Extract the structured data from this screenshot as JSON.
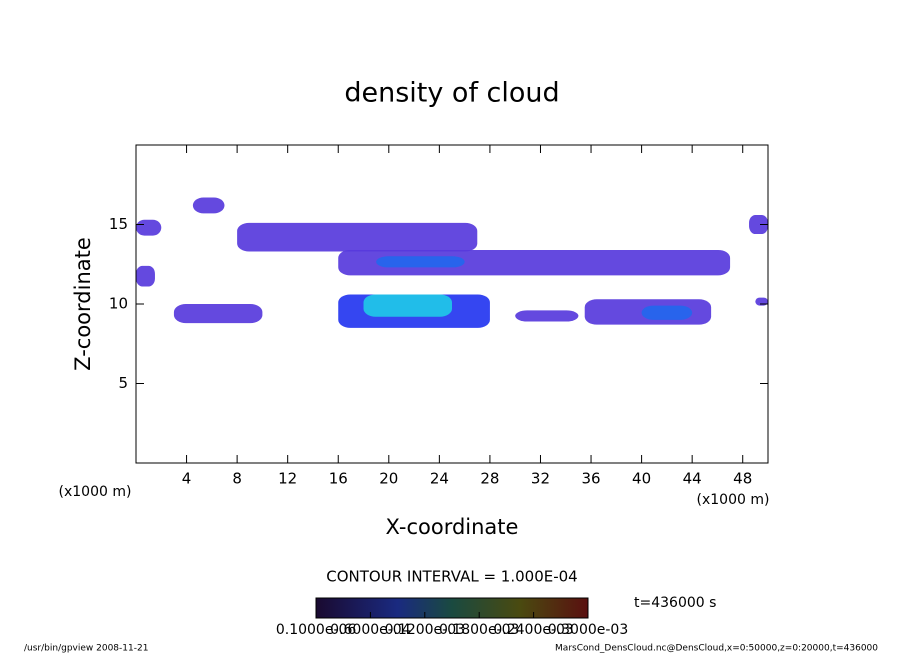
{
  "chart_data": {
    "type": "contour",
    "title": "density of cloud",
    "xlabel": "X-coordinate",
    "ylabel": "Z-coordinate",
    "x_unit_label": "(x1000 m)",
    "y_unit_label": "(x1000 m)",
    "xlim": [
      0,
      50
    ],
    "ylim": [
      0,
      20
    ],
    "xticks": [
      4,
      8,
      12,
      16,
      20,
      24,
      28,
      32,
      36,
      40,
      44,
      48
    ],
    "yticks": [
      5,
      10,
      15
    ],
    "contour_interval": "CONTOUR INTERVAL = 1.000E-04",
    "time_label": "t=436000 s",
    "footer_left": "/usr/bin/gpview   2008-11-21",
    "footer_right": "MarsCond_DensCloud.nc@DensCloud,x=0:50000,z=0:20000,t=436000",
    "colormap": [
      "#8a3cc8",
      "#2436f0",
      "#20c8e8",
      "#40d040",
      "#e8e030",
      "#e03020"
    ],
    "clim": [
      0,
      0.0003
    ],
    "colorbar_ticks": [
      {
        "value": 1e-07,
        "label": "0.1000e-06"
      },
      {
        "value": 6e-05,
        "label": "0.6000e-04"
      },
      {
        "value": 0.00012,
        "label": "0.1200e-03"
      },
      {
        "value": 0.00018,
        "label": "0.1800e-03"
      },
      {
        "value": 0.00024,
        "label": "0.2400e-03"
      },
      {
        "value": 0.0003,
        "label": "0.3000e-03"
      }
    ],
    "regions": [
      {
        "x0": 0,
        "x1": 2,
        "z0": 14.3,
        "z1": 15.3,
        "value": 3e-05
      },
      {
        "x0": 0,
        "x1": 1.5,
        "z0": 11.1,
        "z1": 12.4,
        "value": 3e-05
      },
      {
        "x0": 4.5,
        "x1": 7,
        "z0": 15.7,
        "z1": 16.7,
        "value": 3e-05
      },
      {
        "x0": 8,
        "x1": 27,
        "z0": 13.3,
        "z1": 15.1,
        "value": 3e-05
      },
      {
        "x0": 16,
        "x1": 47,
        "z0": 11.8,
        "z1": 13.4,
        "value": 3e-05
      },
      {
        "x0": 19,
        "x1": 26,
        "z0": 12.3,
        "z1": 13,
        "value": 8e-05
      },
      {
        "x0": 3,
        "x1": 10,
        "z0": 8.8,
        "z1": 10,
        "value": 3e-05
      },
      {
        "x0": 16,
        "x1": 28,
        "z0": 8.5,
        "z1": 10.6,
        "value": 6e-05
      },
      {
        "x0": 18,
        "x1": 25,
        "z0": 9.2,
        "z1": 10.6,
        "value": 0.00012
      },
      {
        "x0": 30,
        "x1": 35,
        "z0": 8.9,
        "z1": 9.6,
        "value": 3e-05
      },
      {
        "x0": 35.5,
        "x1": 45.5,
        "z0": 8.7,
        "z1": 10.3,
        "value": 3e-05
      },
      {
        "x0": 40,
        "x1": 44,
        "z0": 9,
        "z1": 9.9,
        "value": 8e-05
      },
      {
        "x0": 48.5,
        "x1": 50,
        "z0": 14.4,
        "z1": 15.6,
        "value": 3e-05
      },
      {
        "x0": 49,
        "x1": 50,
        "z0": 9.9,
        "z1": 10.4,
        "value": 3e-05
      }
    ]
  }
}
